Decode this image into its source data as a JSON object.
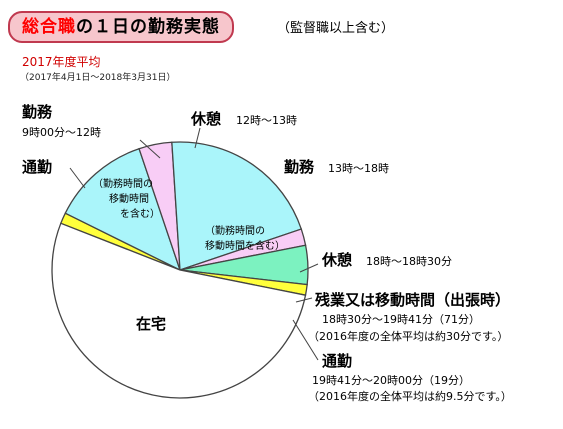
{
  "header": {
    "title_highlight": "総合職",
    "title_rest": "の１日の勤務実態",
    "subtitle": "（監督職以上含む）",
    "period_label": "2017年度平均",
    "period_range": "（2017年4月1日～2018年3月31日）"
  },
  "colors": {
    "work": "#aaf5fa",
    "break": "#f8cdf6",
    "overtime": "#7cf2c0",
    "commute": "#ffff3c",
    "home": "#ffffff",
    "outline": "#444444"
  },
  "chart_data": {
    "type": "pie",
    "slices": [
      {
        "key": "commute_am",
        "label": "通勤",
        "time": "",
        "hours": 0.33,
        "color": "#ffff3c"
      },
      {
        "key": "work_am",
        "label": "勤務",
        "time": "9時00分～12時",
        "hours": 3.0,
        "color": "#aaf5fa"
      },
      {
        "key": "break_noon",
        "label": "休憩",
        "time": "12時～13時",
        "hours": 1.0,
        "color": "#f8cdf6"
      },
      {
        "key": "work_pm",
        "label": "勤務",
        "time": "13時～18時",
        "hours": 5.0,
        "color": "#aaf5fa"
      },
      {
        "key": "break_eve",
        "label": "休憩",
        "time": "18時～18時30分",
        "hours": 0.5,
        "color": "#f8cdf6"
      },
      {
        "key": "overtime",
        "label": "残業又は移動時間（出張時）",
        "time": "18時30分～19時41分（71分）",
        "minutes": 71,
        "hours": 1.18,
        "color": "#7cf2c0"
      },
      {
        "key": "commute_pm",
        "label": "通勤",
        "time": "19時41分～20時00分（19分）",
        "minutes": 19,
        "hours": 0.32,
        "color": "#ffff3c"
      },
      {
        "key": "home",
        "label": "在宅",
        "time": "",
        "hours": 12.67,
        "color": "#ffffff"
      }
    ],
    "annotations": {
      "work_am_note": [
        "（勤務時間の",
        "移動時間",
        "を含む）"
      ],
      "work_pm_note": [
        "（勤務時間の",
        "移動時間を含む）"
      ],
      "overtime_note": "（2016年度の全体平均は約30分です。）",
      "commute_note": "（2016年度の全体平均は約9.5分です。）"
    }
  }
}
